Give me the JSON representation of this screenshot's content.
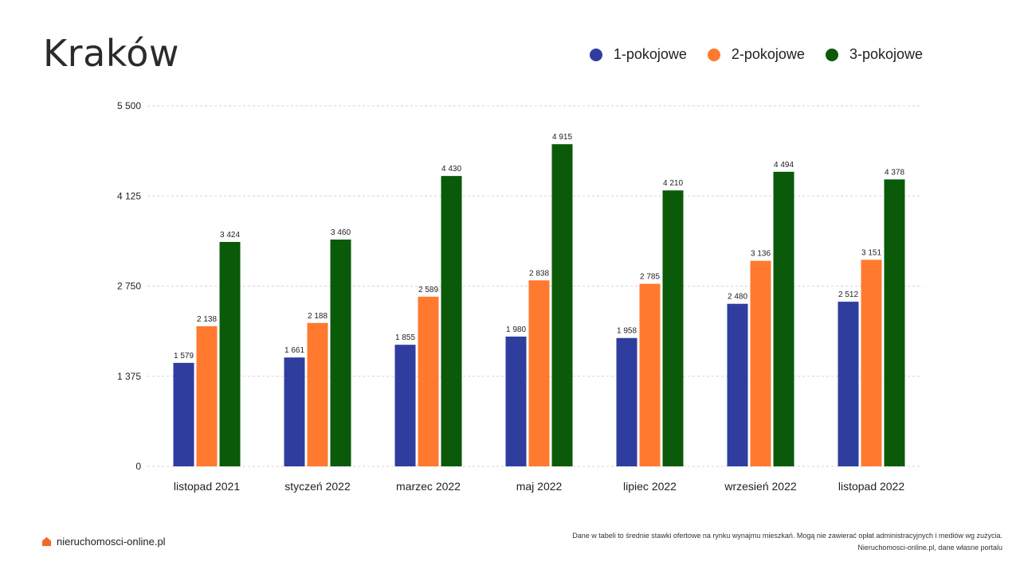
{
  "header": {
    "title": "Kraków"
  },
  "colors": {
    "one_room": "#2f3e9e",
    "two_room": "#ff7a2f",
    "three_room": "#0a5a0a",
    "grid": "#d6d6d6"
  },
  "footer": {
    "brand": "nieruchomosci-online.pl",
    "brand_icon": "house-icon",
    "note_line1": "Dane w tabeli to średnie stawki ofertowe na rynku wynajmu mieszkań. Mogą nie zawierać opłat administracyjnych i mediów wg zużycia.",
    "note_line2": "Nieruchomosci-online.pl, dane własne portalu"
  },
  "chart_data": {
    "type": "bar",
    "categories": [
      "listopad 2021",
      "styczeń 2022",
      "marzec 2022",
      "maj 2022",
      "lipiec 2022",
      "wrzesień 2022",
      "listopad 2022"
    ],
    "series": [
      {
        "name": "1-pokojowe",
        "color": "#2f3e9e",
        "values": [
          1579,
          1661,
          1855,
          1980,
          1958,
          2480,
          2512
        ],
        "labels": [
          "1 579",
          "1 661",
          "1 855",
          "1 980",
          "1 958",
          "2 480",
          "2 512"
        ]
      },
      {
        "name": "2-pokojowe",
        "color": "#ff7a2f",
        "values": [
          2138,
          2188,
          2589,
          2838,
          2785,
          3136,
          3151
        ],
        "labels": [
          "2 138",
          "2 188",
          "2 589",
          "2 838",
          "2 785",
          "3 136",
          "3 151"
        ]
      },
      {
        "name": "3-pokojowe",
        "color": "#0a5a0a",
        "values": [
          3424,
          3460,
          4430,
          4915,
          4210,
          4494,
          4378
        ],
        "labels": [
          "3 424",
          "3 460",
          "4 430",
          "4 915",
          "4 210",
          "4 494",
          "4 378"
        ]
      }
    ],
    "yticks": [
      0,
      1375,
      2750,
      4125,
      5500
    ],
    "ytick_labels": [
      "0",
      "1 375",
      "2 750",
      "4 125",
      "5 500"
    ],
    "ylim": [
      0,
      5500
    ],
    "grid": true,
    "legend": "top-right"
  }
}
